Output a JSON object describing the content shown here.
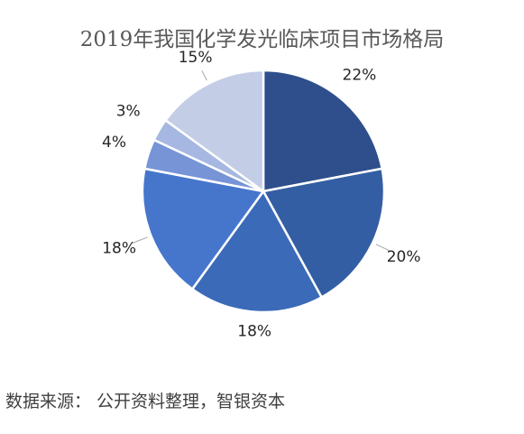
{
  "chart_data": {
    "type": "pie",
    "title": "2019年我国化学发光临床项目市场格局",
    "values": [
      22,
      20,
      18,
      18,
      4,
      3,
      15
    ],
    "labels": [
      "22%",
      "20%",
      "18%",
      "18%",
      "4%",
      "3%",
      "15%"
    ],
    "colors": [
      "#2e4f8c",
      "#335ea3",
      "#3b6ab8",
      "#4676cc",
      "#7794d6",
      "#a6b7e1",
      "#c3cde6"
    ],
    "start_angle_deg": 0,
    "direction": "clockwise"
  },
  "source": "数据来源： 公开资料整理，智银资本"
}
